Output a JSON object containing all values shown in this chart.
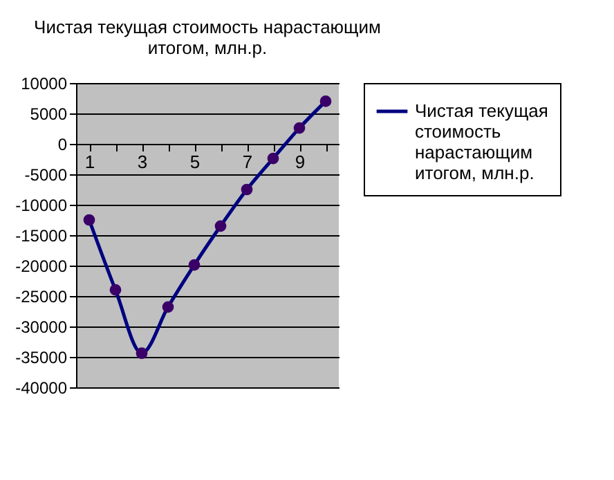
{
  "chart_data": {
    "type": "line",
    "title": "Чистая текущая стоимость нарастающим итогом, млн.р.",
    "categories": [
      "1",
      null,
      "3",
      null,
      "5",
      null,
      "7",
      null,
      "9",
      null
    ],
    "series": [
      {
        "name": "Чистая текущая стоимость нарастающим итогом, млн.р.",
        "color": "#000080",
        "values": [
          -12500,
          -24000,
          -34400,
          -26800,
          -19900,
          -13500,
          -7500,
          -2400,
          2600,
          7000
        ]
      }
    ],
    "ylim": [
      -40000,
      10000
    ],
    "yticks": [
      -40000,
      -35000,
      -30000,
      -25000,
      -20000,
      -15000,
      -10000,
      -5000,
      0,
      5000,
      10000
    ],
    "grid": "y",
    "legend": "right",
    "marker": "circle",
    "line_style": "solid"
  }
}
